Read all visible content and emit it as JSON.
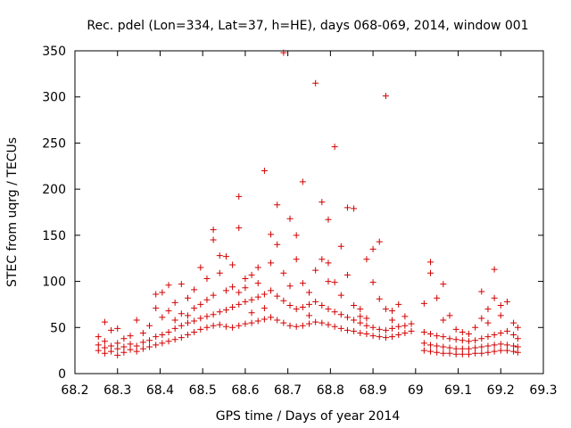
{
  "chart_data": {
    "type": "scatter",
    "title": "Rec. pdel (Lon=334, Lat=37, h=HE), days 068-069, 2014, window 001",
    "xlabel": "GPS time / Days of year 2014",
    "ylabel": "STEC from uqrg / TECUs",
    "xlim": [
      68.2,
      69.3
    ],
    "ylim": [
      0,
      350
    ],
    "xticks": [
      "68.2",
      "68.3",
      "68.4",
      "68.5",
      "68.6",
      "68.7",
      "68.8",
      "68.9",
      "69",
      "69.1",
      "69.2",
      "69.3"
    ],
    "yticks": [
      "0",
      "50",
      "100",
      "150",
      "200",
      "250",
      "300",
      "350"
    ],
    "marker": "+",
    "color": "#d40000",
    "grid": false,
    "legend": "none",
    "series": [
      {
        "name": "STEC",
        "points": [
          [
            68.255,
            25
          ],
          [
            68.255,
            31
          ],
          [
            68.255,
            40
          ],
          [
            68.27,
            22
          ],
          [
            68.27,
            28
          ],
          [
            68.27,
            35
          ],
          [
            68.27,
            56
          ],
          [
            68.285,
            24
          ],
          [
            68.285,
            30
          ],
          [
            68.285,
            47
          ],
          [
            68.3,
            20
          ],
          [
            68.3,
            27
          ],
          [
            68.3,
            33
          ],
          [
            68.3,
            49
          ],
          [
            68.315,
            23
          ],
          [
            68.315,
            29
          ],
          [
            68.315,
            38
          ],
          [
            68.33,
            26
          ],
          [
            68.33,
            32
          ],
          [
            68.33,
            41
          ],
          [
            68.345,
            24
          ],
          [
            68.345,
            30
          ],
          [
            68.345,
            58
          ],
          [
            68.36,
            27
          ],
          [
            68.36,
            34
          ],
          [
            68.36,
            44
          ],
          [
            68.375,
            29
          ],
          [
            68.375,
            36
          ],
          [
            68.375,
            52
          ],
          [
            68.39,
            31
          ],
          [
            68.39,
            40
          ],
          [
            68.39,
            86
          ],
          [
            68.39,
            71
          ],
          [
            68.405,
            33
          ],
          [
            68.405,
            42
          ],
          [
            68.405,
            61
          ],
          [
            68.405,
            88
          ],
          [
            68.42,
            35
          ],
          [
            68.42,
            45
          ],
          [
            68.42,
            68
          ],
          [
            68.42,
            96
          ],
          [
            68.435,
            37
          ],
          [
            68.435,
            49
          ],
          [
            68.435,
            77
          ],
          [
            68.435,
            58
          ],
          [
            68.45,
            39
          ],
          [
            68.45,
            52
          ],
          [
            68.45,
            97
          ],
          [
            68.45,
            65
          ],
          [
            68.465,
            42
          ],
          [
            68.465,
            55
          ],
          [
            68.465,
            82
          ],
          [
            68.465,
            63
          ],
          [
            68.48,
            45
          ],
          [
            68.48,
            57
          ],
          [
            68.48,
            91
          ],
          [
            68.48,
            71
          ],
          [
            68.495,
            48
          ],
          [
            68.495,
            60
          ],
          [
            68.495,
            115
          ],
          [
            68.495,
            75
          ],
          [
            68.51,
            50
          ],
          [
            68.51,
            62
          ],
          [
            68.51,
            103
          ],
          [
            68.51,
            80
          ],
          [
            68.525,
            52
          ],
          [
            68.525,
            64
          ],
          [
            68.525,
            145
          ],
          [
            68.525,
            156
          ],
          [
            68.525,
            85
          ],
          [
            68.54,
            53
          ],
          [
            68.54,
            67
          ],
          [
            68.54,
            128
          ],
          [
            68.54,
            109
          ],
          [
            68.555,
            51
          ],
          [
            68.555,
            69
          ],
          [
            68.555,
            127
          ],
          [
            68.555,
            90
          ],
          [
            68.57,
            50
          ],
          [
            68.57,
            72
          ],
          [
            68.57,
            118
          ],
          [
            68.57,
            94
          ],
          [
            68.585,
            52
          ],
          [
            68.585,
            75
          ],
          [
            68.585,
            192
          ],
          [
            68.585,
            158
          ],
          [
            68.585,
            88
          ],
          [
            68.6,
            54
          ],
          [
            68.6,
            78
          ],
          [
            68.6,
            103
          ],
          [
            68.6,
            93
          ],
          [
            68.615,
            55
          ],
          [
            68.615,
            80
          ],
          [
            68.615,
            107
          ],
          [
            68.615,
            66
          ],
          [
            68.63,
            57
          ],
          [
            68.63,
            83
          ],
          [
            68.63,
            115
          ],
          [
            68.63,
            98
          ],
          [
            68.645,
            59
          ],
          [
            68.645,
            86
          ],
          [
            68.645,
            220
          ],
          [
            68.645,
            71
          ],
          [
            68.66,
            61
          ],
          [
            68.66,
            90
          ],
          [
            68.66,
            151
          ],
          [
            68.66,
            120
          ],
          [
            68.675,
            58
          ],
          [
            68.675,
            84
          ],
          [
            68.675,
            183
          ],
          [
            68.675,
            140
          ],
          [
            68.69,
            55
          ],
          [
            68.69,
            79
          ],
          [
            68.69,
            348
          ],
          [
            68.69,
            109
          ],
          [
            68.705,
            52
          ],
          [
            68.705,
            74
          ],
          [
            68.705,
            168
          ],
          [
            68.705,
            95
          ],
          [
            68.72,
            51
          ],
          [
            68.72,
            70
          ],
          [
            68.72,
            150
          ],
          [
            68.72,
            124
          ],
          [
            68.735,
            52
          ],
          [
            68.735,
            72
          ],
          [
            68.735,
            208
          ],
          [
            68.735,
            98
          ],
          [
            68.75,
            54
          ],
          [
            68.75,
            75
          ],
          [
            68.75,
            88
          ],
          [
            68.75,
            63
          ],
          [
            68.765,
            56
          ],
          [
            68.765,
            78
          ],
          [
            68.765,
            315
          ],
          [
            68.765,
            112
          ],
          [
            68.78,
            55
          ],
          [
            68.78,
            74
          ],
          [
            68.78,
            186
          ],
          [
            68.78,
            124
          ],
          [
            68.795,
            53
          ],
          [
            68.795,
            70
          ],
          [
            68.795,
            167
          ],
          [
            68.795,
            120
          ],
          [
            68.795,
            100
          ],
          [
            68.81,
            51
          ],
          [
            68.81,
            67
          ],
          [
            68.81,
            246
          ],
          [
            68.81,
            99
          ],
          [
            68.825,
            49
          ],
          [
            68.825,
            64
          ],
          [
            68.825,
            138
          ],
          [
            68.825,
            85
          ],
          [
            68.84,
            47
          ],
          [
            68.84,
            61
          ],
          [
            68.84,
            180
          ],
          [
            68.84,
            107
          ],
          [
            68.855,
            46
          ],
          [
            68.855,
            58
          ],
          [
            68.855,
            179
          ],
          [
            68.855,
            74
          ],
          [
            68.87,
            44
          ],
          [
            68.87,
            55
          ],
          [
            68.87,
            62
          ],
          [
            68.87,
            70
          ],
          [
            68.885,
            43
          ],
          [
            68.885,
            52
          ],
          [
            68.885,
            124
          ],
          [
            68.885,
            60
          ],
          [
            68.9,
            41
          ],
          [
            68.9,
            50
          ],
          [
            68.9,
            135
          ],
          [
            68.9,
            99
          ],
          [
            68.915,
            40
          ],
          [
            68.915,
            48
          ],
          [
            68.915,
            143
          ],
          [
            68.915,
            81
          ],
          [
            68.93,
            39
          ],
          [
            68.93,
            47
          ],
          [
            68.93,
            301
          ],
          [
            68.93,
            70
          ],
          [
            68.945,
            40
          ],
          [
            68.945,
            49
          ],
          [
            68.945,
            58
          ],
          [
            68.945,
            68
          ],
          [
            68.96,
            42
          ],
          [
            68.96,
            51
          ],
          [
            68.96,
            75
          ],
          [
            68.975,
            44
          ],
          [
            68.975,
            52
          ],
          [
            68.975,
            62
          ],
          [
            68.99,
            46
          ],
          [
            68.99,
            54
          ],
          [
            69.02,
            25
          ],
          [
            69.02,
            33
          ],
          [
            69.02,
            45
          ],
          [
            69.02,
            76
          ],
          [
            69.035,
            24
          ],
          [
            69.035,
            31
          ],
          [
            69.035,
            43
          ],
          [
            69.035,
            121
          ],
          [
            69.035,
            109
          ],
          [
            69.05,
            23
          ],
          [
            69.05,
            30
          ],
          [
            69.05,
            41
          ],
          [
            69.05,
            82
          ],
          [
            69.065,
            22
          ],
          [
            69.065,
            29
          ],
          [
            69.065,
            40
          ],
          [
            69.065,
            97
          ],
          [
            69.065,
            58
          ],
          [
            69.08,
            22
          ],
          [
            69.08,
            28
          ],
          [
            69.08,
            38
          ],
          [
            69.08,
            63
          ],
          [
            69.095,
            21
          ],
          [
            69.095,
            27
          ],
          [
            69.095,
            37
          ],
          [
            69.095,
            48
          ],
          [
            69.11,
            21
          ],
          [
            69.11,
            27
          ],
          [
            69.11,
            36
          ],
          [
            69.11,
            45
          ],
          [
            69.125,
            21
          ],
          [
            69.125,
            27
          ],
          [
            69.125,
            35
          ],
          [
            69.125,
            43
          ],
          [
            69.14,
            22
          ],
          [
            69.14,
            28
          ],
          [
            69.14,
            36
          ],
          [
            69.14,
            50
          ],
          [
            69.155,
            22
          ],
          [
            69.155,
            29
          ],
          [
            69.155,
            38
          ],
          [
            69.155,
            89
          ],
          [
            69.155,
            60
          ],
          [
            69.17,
            23
          ],
          [
            69.17,
            30
          ],
          [
            69.17,
            40
          ],
          [
            69.17,
            70
          ],
          [
            69.17,
            55
          ],
          [
            69.185,
            24
          ],
          [
            69.185,
            31
          ],
          [
            69.185,
            42
          ],
          [
            69.185,
            113
          ],
          [
            69.185,
            82
          ],
          [
            69.2,
            25
          ],
          [
            69.2,
            32
          ],
          [
            69.2,
            44
          ],
          [
            69.2,
            74
          ],
          [
            69.2,
            63
          ],
          [
            69.215,
            25
          ],
          [
            69.215,
            31
          ],
          [
            69.215,
            46
          ],
          [
            69.215,
            78
          ],
          [
            69.23,
            24
          ],
          [
            69.23,
            30
          ],
          [
            69.23,
            42
          ],
          [
            69.23,
            55
          ],
          [
            69.24,
            23
          ],
          [
            69.24,
            29
          ],
          [
            69.24,
            38
          ],
          [
            69.24,
            50
          ]
        ]
      }
    ]
  }
}
